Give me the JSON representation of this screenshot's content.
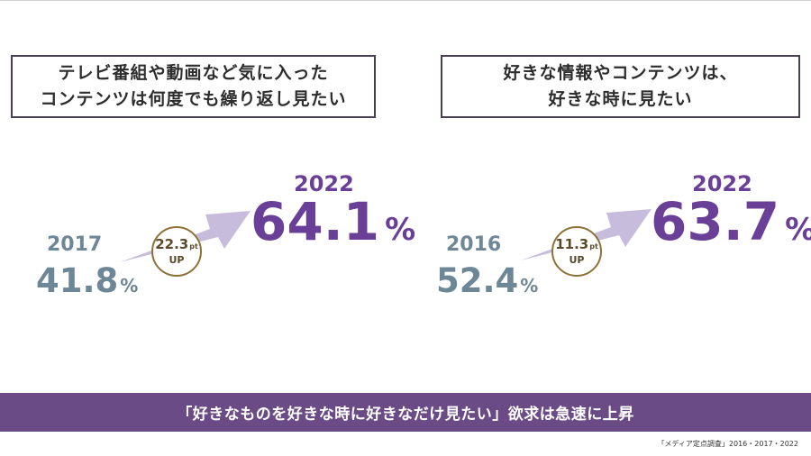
{
  "left": {
    "headline_line1": "テレビ番組や動画など気に入った",
    "headline_line2": "コンテンツは何度でも繰り返し見たい",
    "from_year": "2017",
    "from_value": "41.8",
    "from_unit": "%",
    "to_year": "2022",
    "to_value": "64.1",
    "to_unit": "%",
    "increase_value": "22.3",
    "increase_unit": "pt",
    "increase_label": "UP"
  },
  "right": {
    "headline_line1": "好きな情報やコンテンツは、",
    "headline_line2": "好きな時に見たい",
    "from_year": "2016",
    "from_value": "52.4",
    "from_unit": "%",
    "to_year": "2022",
    "to_value": "63.7",
    "to_unit": "%",
    "increase_value": "11.3",
    "increase_unit": "pt",
    "increase_label": "UP"
  },
  "banner": "「好きなものを好きな時に好きなだけ見たい」欲求は急速に上昇",
  "source": "「メディア定点調査」2016・2017・2022",
  "colors": {
    "past": "#6e8796",
    "current": "#6a3f97",
    "arrow": "#c8bcdd",
    "badge_border": "#8d7238",
    "banner_bg": "#6a4b86"
  }
}
